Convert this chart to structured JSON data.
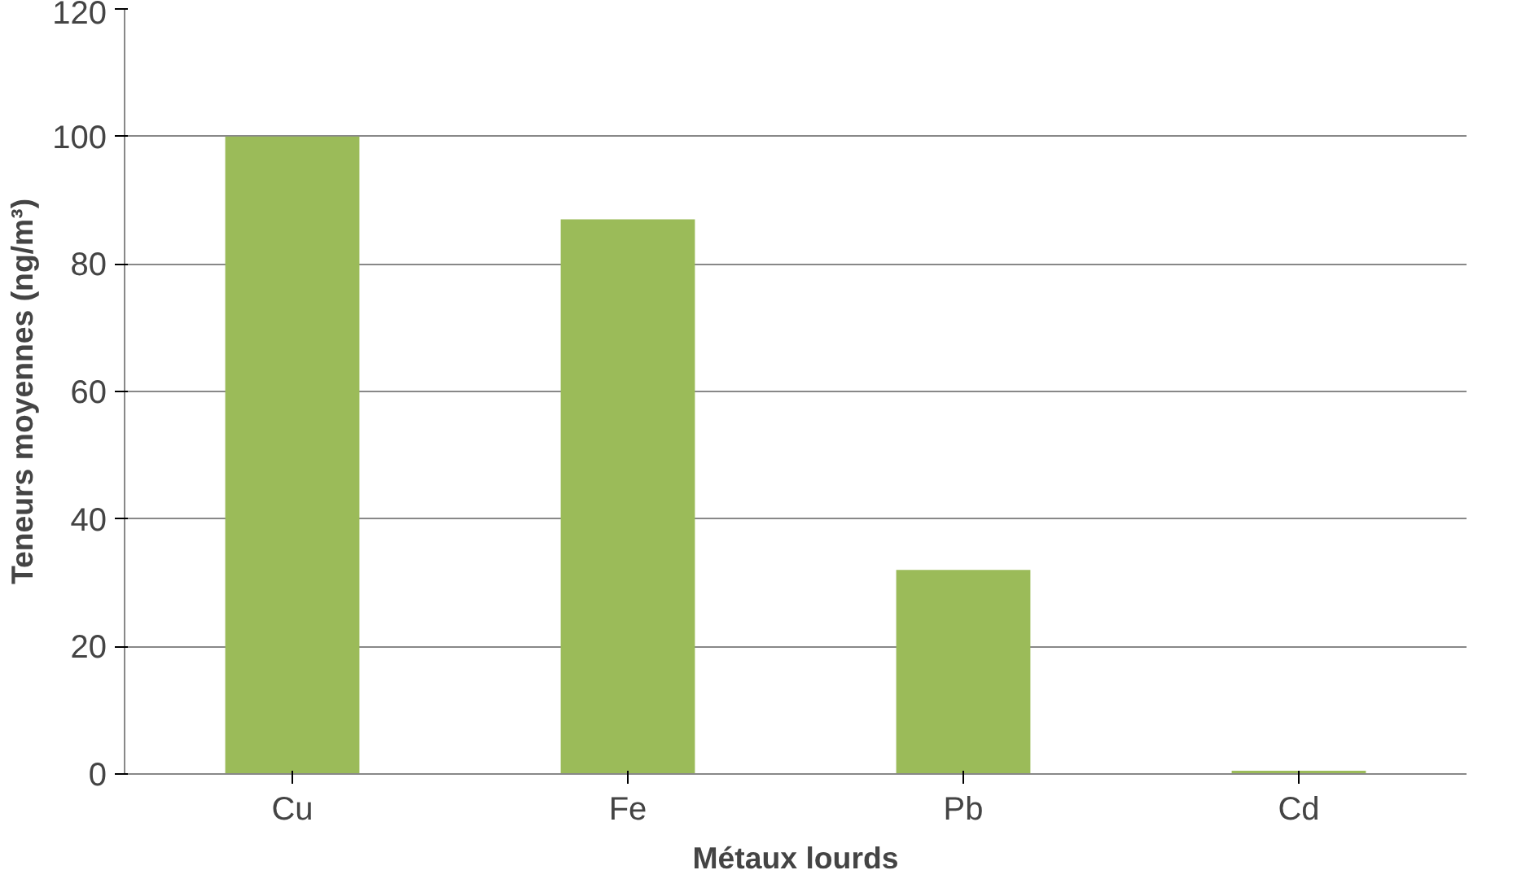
{
  "chart_data": {
    "type": "bar",
    "xlabel": "Métaux lourds",
    "ylabel": "Teneurs moyennes (ng/m³)",
    "categories": [
      "Cu",
      "Fe",
      "Pb",
      "Cd"
    ],
    "values": [
      100,
      87,
      32,
      0.5
    ],
    "color": "#9bbb59",
    "ylim": [
      0,
      120
    ],
    "yticks": [
      0,
      20,
      40,
      60,
      80,
      100,
      120
    ],
    "grid": "y"
  }
}
